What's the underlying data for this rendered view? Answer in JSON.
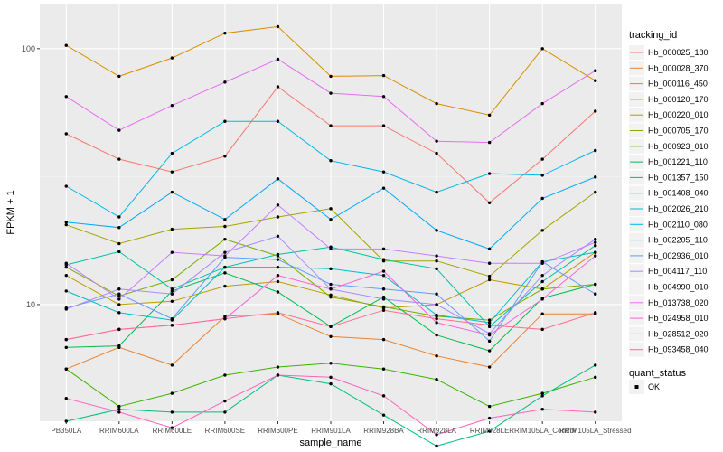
{
  "chart_data": {
    "type": "line",
    "xlabel": "sample_name",
    "ylabel": "FPKM + 1",
    "y_scale": "log",
    "ylim": [
      3.5,
      150
    ],
    "y_ticks": [
      10,
      100
    ],
    "y_tick_labels": [
      "10",
      "100"
    ],
    "grid": true,
    "legend_placement": "right",
    "categories": [
      "PB350LA",
      "RRIM600LA",
      "RRIM600LE",
      "RRIM600SE",
      "RRIM600PE",
      "RRIM901LA",
      "RRIM928BA",
      "RRIM928LA",
      "RRIM928LE",
      "RRIM105LA_Control",
      "RRIM105LA_Stressed"
    ],
    "legend_title": "tracking_id",
    "shape_legend_title": "quant_status",
    "shape_legend_items": [
      "OK"
    ],
    "series": [
      {
        "name": "Hb_000025_180",
        "color": "#F8766D",
        "values": [
          46.5,
          37.0,
          33.0,
          38.0,
          71.0,
          50.0,
          50.0,
          39.0,
          25.0,
          37.0,
          57.0
        ]
      },
      {
        "name": "Hb_000028_370",
        "color": "#EA8331",
        "values": [
          5.6,
          6.8,
          5.8,
          9.0,
          9.2,
          7.5,
          7.3,
          6.3,
          5.7,
          9.2,
          9.2
        ]
      },
      {
        "name": "Hb_000116_450",
        "color": "#D89000",
        "values": [
          103,
          78,
          92,
          115,
          122,
          78,
          78.5,
          61,
          55,
          100,
          75
        ]
      },
      {
        "name": "Hb_000120_170",
        "color": "#C09B00",
        "values": [
          13.0,
          10.0,
          10.3,
          11.8,
          12.3,
          10.9,
          9.7,
          10.0,
          12.5,
          11.5,
          16.0
        ]
      },
      {
        "name": "Hb_000220_010",
        "color": "#A3A500",
        "values": [
          20.5,
          17.3,
          19.7,
          20.2,
          22.0,
          23.7,
          14.8,
          14.8,
          12.9,
          19.5,
          27.5
        ]
      },
      {
        "name": "Hb_000705_170",
        "color": "#7CAE00",
        "values": [
          14.0,
          10.8,
          12.5,
          18.0,
          15.5,
          10.7,
          9.8,
          9.0,
          8.7,
          11.5,
          12.0
        ]
      },
      {
        "name": "Hb_000923_010",
        "color": "#39B600",
        "values": [
          5.6,
          4.0,
          4.5,
          5.3,
          5.7,
          5.9,
          5.6,
          5.1,
          4.0,
          4.5,
          5.2
        ]
      },
      {
        "name": "Hb_001221_110",
        "color": "#00BB4E",
        "values": [
          6.8,
          6.9,
          11.3,
          13.3,
          11.2,
          8.2,
          10.7,
          7.6,
          6.6,
          10.6,
          12.0
        ]
      },
      {
        "name": "Hb_001357_150",
        "color": "#00BF7D",
        "values": [
          3.5,
          3.9,
          3.8,
          3.8,
          5.3,
          4.9,
          3.7,
          2.8,
          3.2,
          4.4,
          5.8
        ]
      },
      {
        "name": "Hb_001408_040",
        "color": "#00C1A3",
        "values": [
          14.3,
          16.1,
          11.5,
          14.0,
          15.7,
          16.8,
          15.0,
          13.8,
          8.2,
          12.3,
          17.0
        ]
      },
      {
        "name": "Hb_002026_210",
        "color": "#00BFC4",
        "values": [
          11.3,
          9.3,
          8.7,
          14.0,
          14.0,
          13.8,
          13.0,
          9.1,
          8.5,
          14.7,
          16.0
        ]
      },
      {
        "name": "Hb_002110_080",
        "color": "#00B8E5",
        "values": [
          29.0,
          22.0,
          39.0,
          52.0,
          52.0,
          36.5,
          33.0,
          27.5,
          32.5,
          32.0,
          40.0
        ]
      },
      {
        "name": "Hb_002205_110",
        "color": "#00ABFD",
        "values": [
          21.0,
          20.0,
          27.5,
          21.5,
          31.0,
          21.5,
          28.5,
          19.5,
          16.5,
          26.0,
          31.5
        ]
      },
      {
        "name": "Hb_002936_010",
        "color": "#619CFF",
        "values": [
          9.7,
          11.0,
          8.8,
          15.3,
          15.0,
          12.0,
          11.5,
          11.0,
          7.2,
          14.7,
          11.0
        ]
      },
      {
        "name": "Hb_004117_110",
        "color": "#A58AFF",
        "values": [
          9.6,
          11.5,
          11.0,
          16.0,
          18.5,
          11.5,
          10.5,
          10.0,
          7.7,
          13.0,
          18.0
        ]
      },
      {
        "name": "Hb_004990_010",
        "color": "#C77CFF",
        "values": [
          14.5,
          10.5,
          16.0,
          15.5,
          24.5,
          16.5,
          16.5,
          15.5,
          14.5,
          14.5,
          17.5
        ]
      },
      {
        "name": "Hb_013738_020",
        "color": "#E76BF3",
        "values": [
          65.0,
          48.0,
          60.0,
          74.0,
          91.0,
          67.0,
          65.0,
          43.5,
          43.0,
          61.0,
          82.0
        ]
      },
      {
        "name": "Hb_024958_010",
        "color": "#FA62DB",
        "values": [
          7.3,
          8.0,
          8.3,
          8.8,
          13.0,
          11.5,
          13.5,
          8.5,
          7.6,
          10.5,
          15.5
        ]
      },
      {
        "name": "Hb_028512_020",
        "color": "#FF62BC",
        "values": [
          4.3,
          3.8,
          3.3,
          4.2,
          5.3,
          5.2,
          4.4,
          3.1,
          3.6,
          3.9,
          3.8
        ]
      },
      {
        "name": "Hb_093458_040",
        "color": "#FF6C91",
        "values": [
          7.3,
          8.0,
          8.3,
          8.8,
          9.3,
          8.2,
          9.5,
          8.8,
          8.3,
          8.0,
          9.3
        ]
      }
    ]
  }
}
